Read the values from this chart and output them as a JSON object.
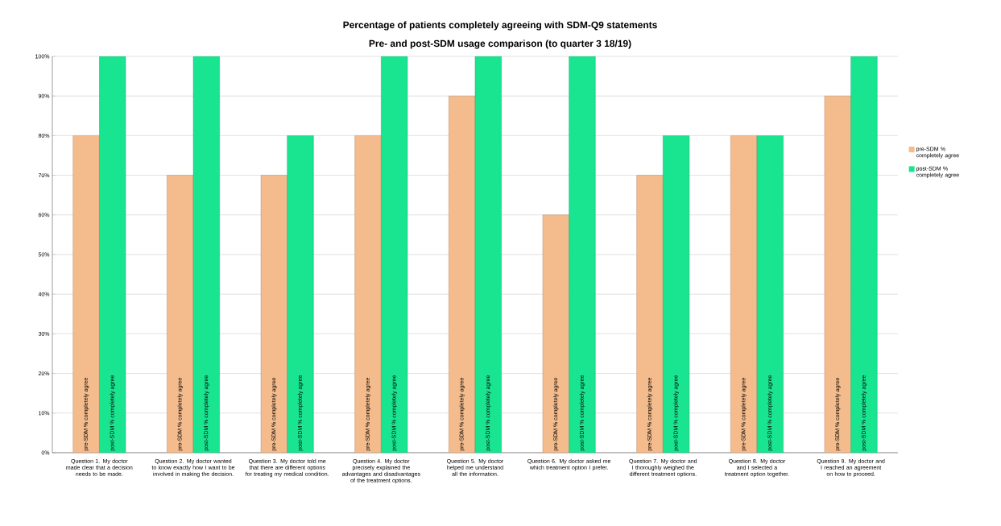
{
  "chart_data": {
    "type": "bar",
    "title": "Percentage of patients completely agreeing with SDM-Q9 statements",
    "subtitle": "Pre- and post-SDM usage comparison (to quarter 3 18/19)",
    "categories": [
      "Question 1. My doctor made clear that a decision needs to be made.",
      "Question 2. My doctor wanted to know exactly how I want to be involved in making the decision.",
      "Question 3. My doctor told me that there are different options for treating my medical condition.",
      "Question 4. My doctor precisely explained the advantages and disadvantages of the treatment options.",
      "Question 5. My doctor helped me understand all the information.",
      "Question 6. My doctor asked me which treatment option I prefer.",
      "Question 7. My doctor and I thoroughly weighed the different treatment options.",
      "Question 8. My doctor and I selected a treatment option together.",
      "Question 9. My doctor and I reached an agreement on how to proceed."
    ],
    "series": [
      {
        "name": "pre-SDM % completely agree",
        "color": "#f4bb8c",
        "values": [
          80,
          70,
          70,
          80,
          90,
          60,
          70,
          80,
          90
        ]
      },
      {
        "name": "post-SDM % completely agree",
        "color": "#19e48f",
        "values": [
          100,
          100,
          80,
          100,
          100,
          100,
          80,
          80,
          100
        ]
      }
    ],
    "ylim": [
      0,
      100
    ],
    "yticks": [
      {
        "value": 0,
        "label": "0%"
      },
      {
        "value": 10,
        "label": "10%"
      },
      {
        "value": 20,
        "label": "20%"
      },
      {
        "value": 30,
        "label": "30%"
      },
      {
        "value": 40,
        "label": "40%"
      },
      {
        "value": 50,
        "label": "50%"
      },
      {
        "value": 60,
        "label": "60%"
      },
      {
        "value": 70,
        "label": "70%"
      },
      {
        "value": 80,
        "label": "80%"
      },
      {
        "value": 90,
        "label": "90%"
      },
      {
        "value": 100,
        "label": "100%"
      }
    ],
    "grid": "y",
    "legend": "right"
  }
}
